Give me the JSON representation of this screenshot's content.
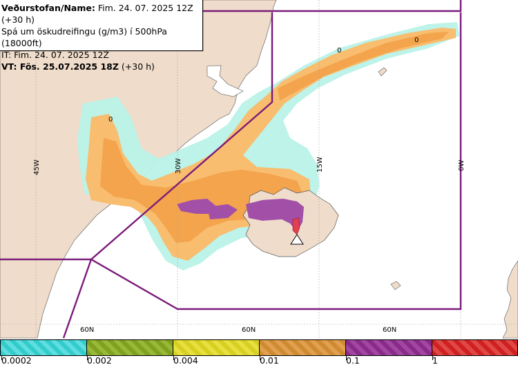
{
  "header": {
    "line1_bold": "Veðurstofan/Name:",
    "line1_rest": " Fim. 24. 07. 2025 12Z (+30 h)",
    "line2": "Spá um öskudreifingu (g/m3) í 500hPa (18000ft)",
    "line3": "IT: Fim. 24. 07. 2025 12Z",
    "line4_bold": "VT: Fös. 25.07.2025 18Z",
    "line4_rest": " (+30 h)"
  },
  "grid_labels": {
    "lon_45w": "45W",
    "lon_30w": "30W",
    "lon_15w": "15W",
    "lon_0w": "0W",
    "lat_60n_a": "60N",
    "lat_60n_b": "60N",
    "lat_60n_c": "60N"
  },
  "contour_labels": {
    "zero_a": "0",
    "zero_b": "0",
    "zero_c": "0"
  },
  "legend": {
    "labels": [
      "0.0002",
      "0.002",
      "0.004",
      "0.01",
      "0.1",
      "1"
    ],
    "colors": [
      "#33cccc",
      "#7fa020",
      "#d8d020",
      "#d08a30",
      "#8a2a8a",
      "#d02020"
    ]
  },
  "colors": {
    "land": "#efdccb",
    "sea": "#ffffff",
    "boundary": "#7a1a7a",
    "ash_low": "#b0f0e6",
    "ash_mid": "#f8c070",
    "ash_high": "#f3a650",
    "ash_purple": "#a050a8",
    "ash_red": "#e03040"
  }
}
